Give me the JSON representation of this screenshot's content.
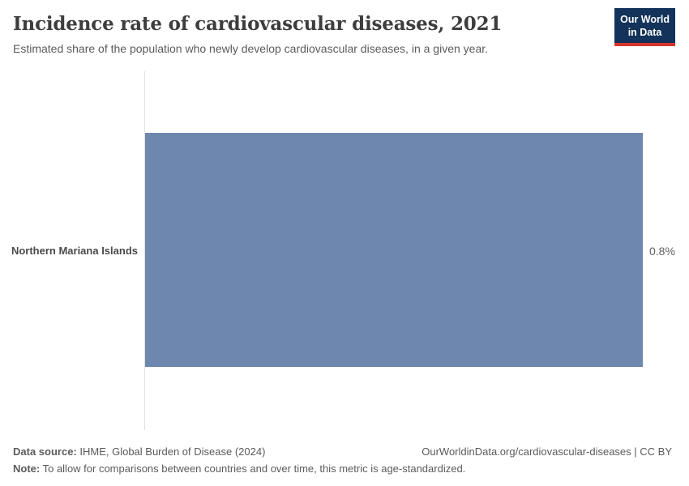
{
  "header": {
    "title": "Incidence rate of cardiovascular diseases, 2021",
    "subtitle": "Estimated share of the population who newly develop cardiovascular diseases, in a given year.",
    "logo": {
      "line1": "Our World",
      "line2": "in Data"
    }
  },
  "chart_data": {
    "type": "bar",
    "orientation": "horizontal",
    "title": "Incidence rate of cardiovascular diseases, 2021",
    "categories": [
      "Northern Mariana Islands"
    ],
    "values": [
      0.8
    ],
    "value_labels": [
      "0.8%"
    ],
    "unit": "%",
    "xlim": [
      0,
      0.8
    ],
    "grid": false,
    "legend": "none",
    "bar_color": "#6e87ae"
  },
  "footer": {
    "source_label": "Data source:",
    "source_text": " IHME, Global Burden of Disease (2024)",
    "link_text": "OurWorldinData.org/cardiovascular-diseases | CC BY",
    "note_label": "Note:",
    "note_text": " To allow for comparisons between countries and over time, this metric is age-standardized."
  },
  "colors": {
    "bar": "#6e87ae",
    "logo_background": "#13335a",
    "logo_accent": "#d8352c",
    "axis_line": "#e0e0e0"
  }
}
